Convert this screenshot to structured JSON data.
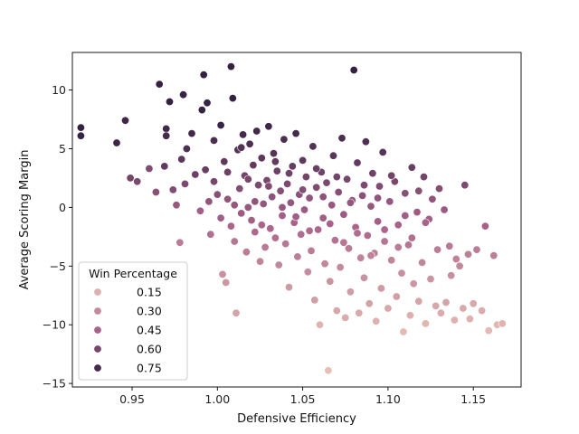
{
  "chart_data": {
    "type": "scatter",
    "title": "",
    "xlabel": "Defensive Efficiency",
    "ylabel": "Average Scoring Margin",
    "xlim": [
      0.915,
      1.178
    ],
    "ylim": [
      -15.3,
      13.2
    ],
    "x_ticks": [
      0.95,
      1.0,
      1.05,
      1.1,
      1.15
    ],
    "x_tick_labels": [
      "0.95",
      "1.00",
      "1.05",
      "1.10",
      "1.15"
    ],
    "y_ticks": [
      -15,
      -10,
      -5,
      0,
      5,
      10
    ],
    "y_tick_labels": [
      "−15",
      "−10",
      "−5",
      "0",
      "5",
      "10"
    ],
    "grid": false,
    "legend": {
      "title": "Win Percentage",
      "placement": "lower-left",
      "entries": [
        {
          "label": "0.15",
          "value": 0.15
        },
        {
          "label": "0.30",
          "value": 0.3
        },
        {
          "label": "0.45",
          "value": 0.45
        },
        {
          "label": "0.60",
          "value": 0.6
        },
        {
          "label": "0.75",
          "value": 0.75
        }
      ]
    },
    "hue": {
      "variable": "Win Percentage",
      "range": [
        0.08,
        0.82
      ],
      "color_low": "#ebc4b8",
      "color_mid": "#a8628a",
      "color_high": "#2d1e3e"
    },
    "points": [
      [
        0.92,
        6.8,
        0.8
      ],
      [
        0.92,
        6.1,
        0.79
      ],
      [
        0.941,
        5.5,
        0.78
      ],
      [
        0.946,
        7.4,
        0.77
      ],
      [
        0.949,
        2.5,
        0.61
      ],
      [
        0.953,
        2.2,
        0.58
      ],
      [
        0.96,
        3.3,
        0.57
      ],
      [
        0.964,
        1.3,
        0.55
      ],
      [
        0.966,
        10.5,
        0.8
      ],
      [
        0.969,
        3.5,
        0.66
      ],
      [
        0.97,
        6.7,
        0.76
      ],
      [
        0.97,
        6.1,
        0.75
      ],
      [
        0.972,
        9.0,
        0.8
      ],
      [
        0.974,
        1.5,
        0.57
      ],
      [
        0.976,
        0.2,
        0.5
      ],
      [
        0.978,
        -3.0,
        0.35
      ],
      [
        0.979,
        4.1,
        0.68
      ],
      [
        0.98,
        9.6,
        0.79
      ],
      [
        0.981,
        2.0,
        0.58
      ],
      [
        0.982,
        5.0,
        0.72
      ],
      [
        0.985,
        6.3,
        0.76
      ],
      [
        0.987,
        2.8,
        0.63
      ],
      [
        0.99,
        -0.3,
        0.47
      ],
      [
        0.991,
        8.3,
        0.79
      ],
      [
        0.992,
        11.3,
        0.8
      ],
      [
        0.993,
        3.2,
        0.64
      ],
      [
        0.994,
        8.9,
        0.79
      ],
      [
        0.995,
        0.5,
        0.52
      ],
      [
        0.996,
        -2.3,
        0.4
      ],
      [
        0.998,
        5.7,
        0.73
      ],
      [
        1.0,
        1.1,
        0.55
      ],
      [
        1.002,
        7.0,
        0.78
      ],
      [
        1.003,
        -5.7,
        0.27
      ],
      [
        1.004,
        3.9,
        0.67
      ],
      [
        1.005,
        -6.4,
        0.25
      ],
      [
        1.006,
        0.7,
        0.52
      ],
      [
        1.008,
        12.0,
        0.8
      ],
      [
        1.008,
        -1.6,
        0.44
      ],
      [
        1.009,
        9.3,
        0.8
      ],
      [
        1.01,
        -2.9,
        0.38
      ],
      [
        1.011,
        -9.0,
        0.2
      ],
      [
        1.012,
        4.9,
        0.7
      ],
      [
        1.013,
        1.6,
        0.56
      ],
      [
        1.014,
        -0.5,
        0.48
      ],
      [
        1.015,
        6.2,
        0.75
      ],
      [
        1.016,
        2.7,
        0.61
      ],
      [
        1.017,
        -3.8,
        0.35
      ],
      [
        1.018,
        0.0,
        0.5
      ],
      [
        1.019,
        5.4,
        0.72
      ],
      [
        1.02,
        -1.1,
        0.46
      ],
      [
        1.021,
        3.6,
        0.66
      ],
      [
        1.022,
        -2.1,
        0.42
      ],
      [
        1.023,
        6.5,
        0.76
      ],
      [
        1.024,
        1.9,
        0.58
      ],
      [
        1.025,
        -4.6,
        0.32
      ],
      [
        1.026,
        4.2,
        0.68
      ],
      [
        1.027,
        0.3,
        0.51
      ],
      [
        1.028,
        -3.4,
        0.36
      ],
      [
        1.029,
        2.3,
        0.6
      ],
      [
        1.03,
        6.9,
        0.77
      ],
      [
        1.031,
        -1.8,
        0.43
      ],
      [
        1.032,
        0.9,
        0.53
      ],
      [
        1.033,
        4.6,
        0.7
      ],
      [
        1.034,
        -2.6,
        0.4
      ],
      [
        1.035,
        3.1,
        0.63
      ],
      [
        1.036,
        -4.9,
        0.31
      ],
      [
        1.037,
        1.4,
        0.55
      ],
      [
        1.038,
        -0.7,
        0.47
      ],
      [
        1.039,
        5.8,
        0.73
      ],
      [
        1.04,
        -3.1,
        0.37
      ],
      [
        1.041,
        2.0,
        0.58
      ],
      [
        1.042,
        -6.8,
        0.24
      ],
      [
        1.043,
        0.4,
        0.51
      ],
      [
        1.044,
        3.5,
        0.65
      ],
      [
        1.045,
        -1.3,
        0.45
      ],
      [
        1.046,
        6.3,
        0.75
      ],
      [
        1.047,
        -4.2,
        0.34
      ],
      [
        1.048,
        1.1,
        0.54
      ],
      [
        1.049,
        -2.3,
        0.41
      ],
      [
        1.05,
        4.0,
        0.67
      ],
      [
        1.051,
        -0.2,
        0.49
      ],
      [
        1.052,
        2.6,
        0.61
      ],
      [
        1.053,
        -5.5,
        0.29
      ],
      [
        1.054,
        0.8,
        0.52
      ],
      [
        1.055,
        -3.7,
        0.35
      ],
      [
        1.056,
        5.2,
        0.71
      ],
      [
        1.057,
        -7.9,
        0.22
      ],
      [
        1.058,
        1.7,
        0.57
      ],
      [
        1.059,
        -1.9,
        0.43
      ],
      [
        1.06,
        -10.0,
        0.14
      ],
      [
        1.061,
        3.0,
        0.62
      ],
      [
        1.062,
        -0.9,
        0.47
      ],
      [
        1.063,
        -4.8,
        0.31
      ],
      [
        1.064,
        2.1,
        0.59
      ],
      [
        1.065,
        -13.9,
        0.1
      ],
      [
        1.066,
        -6.3,
        0.26
      ],
      [
        1.067,
        0.2,
        0.5
      ],
      [
        1.068,
        4.4,
        0.69
      ],
      [
        1.069,
        -2.8,
        0.39
      ],
      [
        1.07,
        -8.8,
        0.19
      ],
      [
        1.071,
        1.3,
        0.55
      ],
      [
        1.072,
        -5.1,
        0.3
      ],
      [
        1.073,
        5.9,
        0.73
      ],
      [
        1.074,
        -0.6,
        0.48
      ],
      [
        1.075,
        -9.4,
        0.17
      ],
      [
        1.076,
        2.4,
        0.6
      ],
      [
        1.077,
        -3.5,
        0.36
      ],
      [
        1.078,
        -7.2,
        0.23
      ],
      [
        1.079,
        0.6,
        0.52
      ],
      [
        1.08,
        11.7,
        0.8
      ],
      [
        1.081,
        -1.7,
        0.44
      ],
      [
        1.082,
        3.8,
        0.66
      ],
      [
        1.083,
        -9.0,
        0.18
      ],
      [
        1.084,
        -4.3,
        0.33
      ],
      [
        1.085,
        1.0,
        0.54
      ],
      [
        1.086,
        -6.0,
        0.27
      ],
      [
        1.087,
        5.6,
        0.72
      ],
      [
        1.088,
        -2.4,
        0.41
      ],
      [
        1.089,
        -8.2,
        0.21
      ],
      [
        1.09,
        0.1,
        0.5
      ],
      [
        1.091,
        2.9,
        0.62
      ],
      [
        1.092,
        -3.9,
        0.34
      ],
      [
        1.093,
        -9.7,
        0.15
      ],
      [
        1.094,
        -1.2,
        0.46
      ],
      [
        1.095,
        1.8,
        0.57
      ],
      [
        1.096,
        -6.9,
        0.24
      ],
      [
        1.097,
        4.7,
        0.7
      ],
      [
        1.098,
        -2.9,
        0.38
      ],
      [
        1.1,
        -8.6,
        0.19
      ],
      [
        1.101,
        0.5,
        0.51
      ],
      [
        1.102,
        -4.5,
        0.32
      ],
      [
        1.104,
        2.2,
        0.59
      ],
      [
        1.105,
        -7.6,
        0.22
      ],
      [
        1.106,
        -1.5,
        0.45
      ],
      [
        1.108,
        -5.6,
        0.28
      ],
      [
        1.109,
        -10.6,
        0.12
      ],
      [
        1.11,
        1.2,
        0.55
      ],
      [
        1.112,
        -3.2,
        0.37
      ],
      [
        1.113,
        -9.2,
        0.16
      ],
      [
        1.114,
        3.4,
        0.64
      ],
      [
        1.115,
        -6.5,
        0.25
      ],
      [
        1.117,
        -0.4,
        0.48
      ],
      [
        1.118,
        -8.0,
        0.2
      ],
      [
        1.12,
        -4.7,
        0.31
      ],
      [
        1.121,
        2.6,
        0.61
      ],
      [
        1.122,
        -9.9,
        0.14
      ],
      [
        1.124,
        -1.0,
        0.47
      ],
      [
        1.125,
        -6.1,
        0.26
      ],
      [
        1.126,
        0.7,
        0.52
      ],
      [
        1.128,
        -8.4,
        0.19
      ],
      [
        1.129,
        -3.6,
        0.35
      ],
      [
        1.13,
        1.6,
        0.56
      ],
      [
        1.131,
        -9.0,
        0.17
      ],
      [
        1.133,
        -0.2,
        0.49
      ],
      [
        1.134,
        -8.1,
        0.2
      ],
      [
        1.136,
        -3.3,
        0.36
      ],
      [
        1.137,
        -5.8,
        0.28
      ],
      [
        1.139,
        -9.6,
        0.15
      ],
      [
        1.14,
        -4.4,
        0.33
      ],
      [
        1.142,
        -5.0,
        0.31
      ],
      [
        1.144,
        -8.6,
        0.18
      ],
      [
        1.145,
        1.9,
        0.58
      ],
      [
        1.147,
        -4.0,
        0.34
      ],
      [
        1.148,
        -9.5,
        0.15
      ],
      [
        1.15,
        -8.2,
        0.19
      ],
      [
        1.152,
        -3.6,
        0.35
      ],
      [
        1.155,
        -8.8,
        0.17
      ],
      [
        1.157,
        -1.6,
        0.45
      ],
      [
        1.159,
        -10.5,
        0.12
      ],
      [
        1.162,
        -4.1,
        0.34
      ],
      [
        1.164,
        -10.0,
        0.13
      ],
      [
        1.167,
        -9.9,
        0.14
      ],
      [
        0.998,
        2.2,
        0.6
      ],
      [
        1.002,
        -0.9,
        0.47
      ],
      [
        1.006,
        3.0,
        0.63
      ],
      [
        1.01,
        0.2,
        0.51
      ],
      [
        1.014,
        5.1,
        0.71
      ],
      [
        1.018,
        2.4,
        0.6
      ],
      [
        1.022,
        0.5,
        0.52
      ],
      [
        1.026,
        -1.5,
        0.44
      ],
      [
        1.03,
        1.8,
        0.57
      ],
      [
        1.034,
        3.9,
        0.66
      ],
      [
        1.038,
        0.0,
        0.5
      ],
      [
        1.042,
        2.9,
        0.62
      ],
      [
        1.046,
        -0.8,
        0.47
      ],
      [
        1.05,
        1.5,
        0.56
      ],
      [
        1.054,
        -2.0,
        0.42
      ],
      [
        1.058,
        3.3,
        0.64
      ],
      [
        1.062,
        0.9,
        0.53
      ],
      [
        1.066,
        -1.4,
        0.45
      ],
      [
        1.07,
        2.6,
        0.61
      ],
      [
        1.074,
        -3.0,
        0.37
      ],
      [
        1.078,
        0.4,
        0.51
      ],
      [
        1.082,
        -2.2,
        0.41
      ],
      [
        1.086,
        1.9,
        0.58
      ],
      [
        1.09,
        -4.1,
        0.33
      ],
      [
        1.094,
        0.8,
        0.52
      ],
      [
        1.098,
        -1.9,
        0.43
      ],
      [
        1.102,
        2.7,
        0.61
      ],
      [
        1.106,
        -3.4,
        0.35
      ],
      [
        1.11,
        -0.7,
        0.47
      ],
      [
        1.114,
        -2.6,
        0.4
      ],
      [
        1.118,
        1.4,
        0.55
      ],
      [
        1.122,
        -1.3,
        0.45
      ]
    ]
  }
}
